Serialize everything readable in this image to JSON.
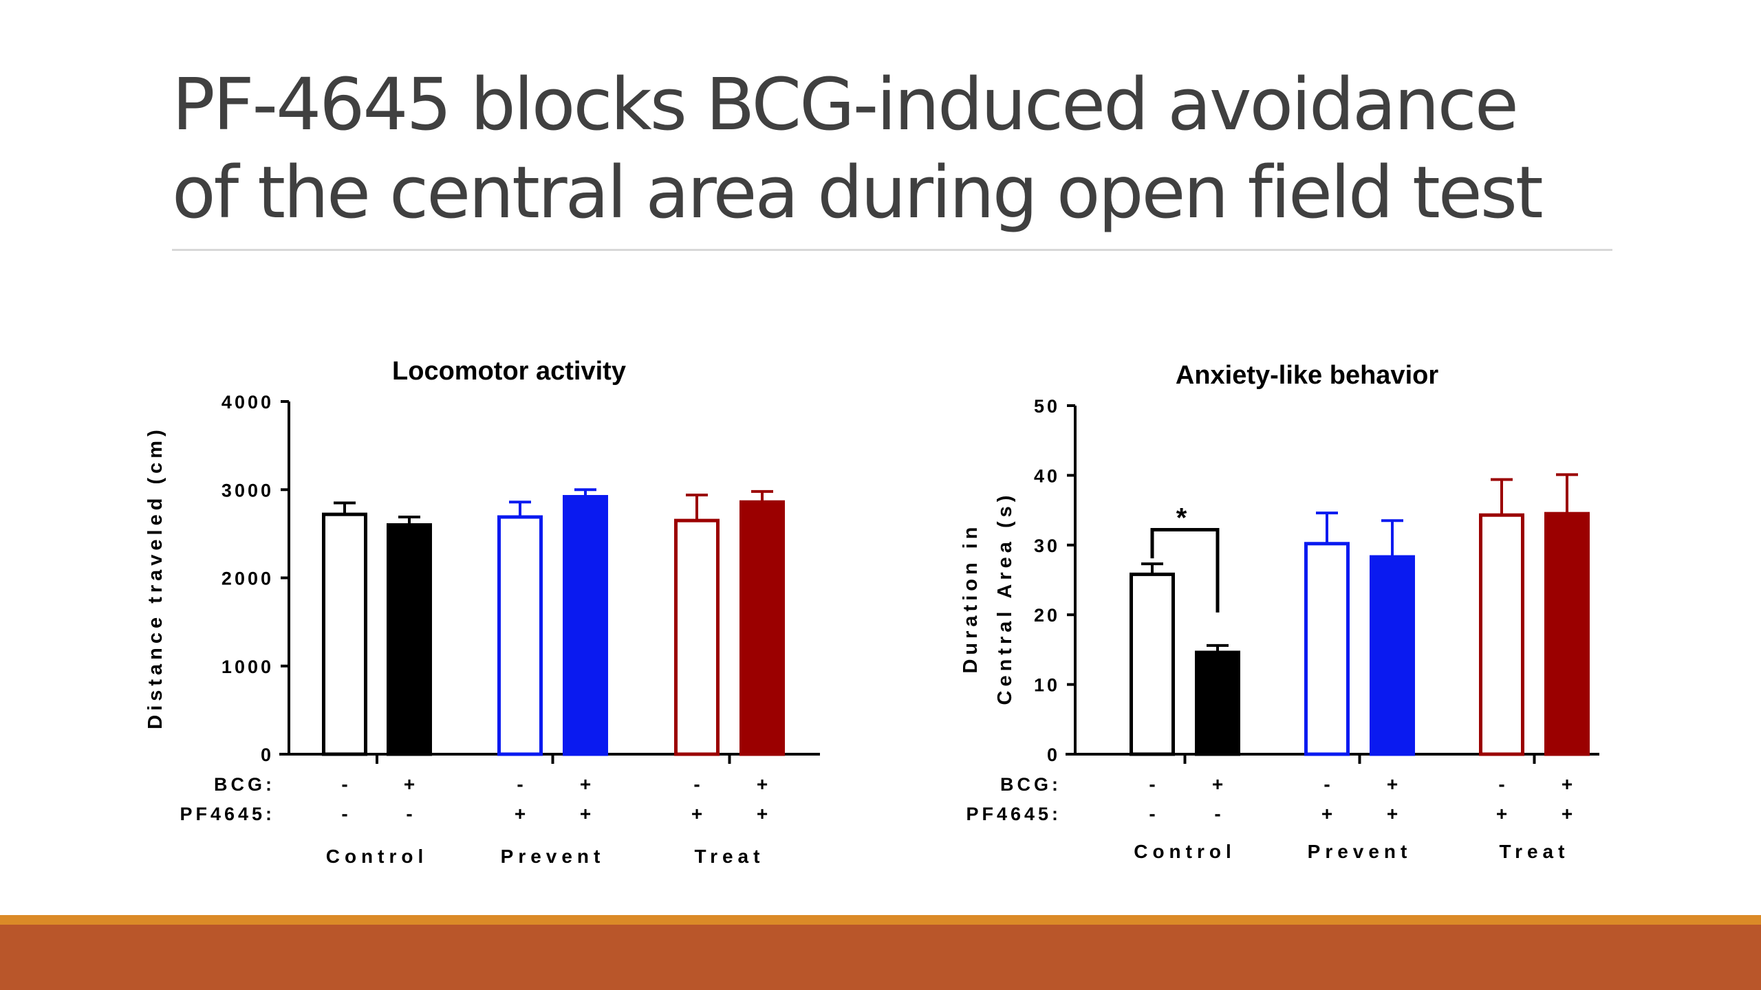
{
  "slide": {
    "title_line1": "PF-4645 blocks BCG-induced avoidance",
    "title_line2": "of the central area during open field test"
  },
  "colors": {
    "text": "#404040",
    "rule": "#d8d8d8",
    "footer_orange": "#db8a27",
    "footer_rust": "#b9562a",
    "control": "#000000",
    "prevent": "#0a1af0",
    "treat": "#9b0000"
  },
  "chart_data": [
    {
      "type": "bar",
      "title": "Locomotor activity",
      "ylabel": "Distance traveled (cm)",
      "ylim": [
        0,
        4000
      ],
      "yticks": [
        "0",
        "1000",
        "2000",
        "3000",
        "4000"
      ],
      "row_labels": [
        "BCG:",
        "PF4645:"
      ],
      "groups": [
        {
          "name": "Control",
          "color": "#000000",
          "bars": [
            {
              "bcg": "-",
              "pf4645": "-",
              "filled": false,
              "value": 2720,
              "error": 130
            },
            {
              "bcg": "+",
              "pf4645": "-",
              "filled": true,
              "value": 2600,
              "error": 90
            }
          ]
        },
        {
          "name": "Prevent",
          "color": "#0a1af0",
          "bars": [
            {
              "bcg": "-",
              "pf4645": "+",
              "filled": false,
              "value": 2690,
              "error": 170
            },
            {
              "bcg": "+",
              "pf4645": "+",
              "filled": true,
              "value": 2920,
              "error": 80
            }
          ]
        },
        {
          "name": "Treat",
          "color": "#9b0000",
          "bars": [
            {
              "bcg": "-",
              "pf4645": "+",
              "filled": false,
              "value": 2650,
              "error": 290
            },
            {
              "bcg": "+",
              "pf4645": "+",
              "filled": true,
              "value": 2860,
              "error": 120
            }
          ]
        }
      ]
    },
    {
      "type": "bar",
      "title": "Anxiety-like behavior",
      "ylabel_line1": "Duration in",
      "ylabel_line2": "Central Area (s)",
      "ylim": [
        0,
        50
      ],
      "yticks": [
        "0",
        "10",
        "20",
        "30",
        "40",
        "50"
      ],
      "row_labels": [
        "BCG:",
        "PF4645:"
      ],
      "significance": "*",
      "groups": [
        {
          "name": "Control",
          "color": "#000000",
          "bars": [
            {
              "bcg": "-",
              "pf4645": "-",
              "filled": false,
              "value": 25.8,
              "error": 1.5
            },
            {
              "bcg": "+",
              "pf4645": "-",
              "filled": true,
              "value": 14.6,
              "error": 1.0
            }
          ]
        },
        {
          "name": "Prevent",
          "color": "#0a1af0",
          "bars": [
            {
              "bcg": "-",
              "pf4645": "+",
              "filled": false,
              "value": 30.2,
              "error": 4.4
            },
            {
              "bcg": "+",
              "pf4645": "+",
              "filled": true,
              "value": 28.3,
              "error": 5.2
            }
          ]
        },
        {
          "name": "Treat",
          "color": "#9b0000",
          "bars": [
            {
              "bcg": "-",
              "pf4645": "+",
              "filled": false,
              "value": 34.3,
              "error": 5.1
            },
            {
              "bcg": "+",
              "pf4645": "+",
              "filled": true,
              "value": 34.5,
              "error": 5.6
            }
          ]
        }
      ]
    }
  ]
}
